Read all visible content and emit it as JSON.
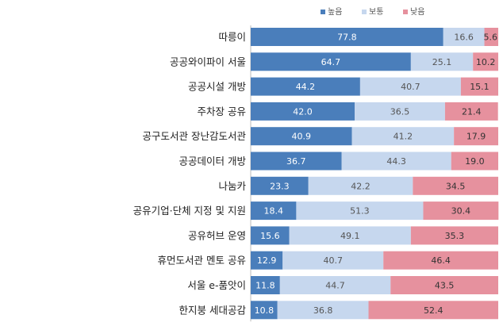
{
  "chart_data": {
    "type": "bar",
    "orientation": "horizontal",
    "stacked": "percent",
    "legend_position": "top-right",
    "xlim": [
      0,
      100
    ],
    "categories": [
      "따릉이",
      "공공와이파이 서울",
      "공공시설 개방",
      "주차장 공유",
      "공구도서관 장난감도서관",
      "공공데이터 개방",
      "나눔카",
      "공유기업·단체 지정 및 지원",
      "공유허브 운영",
      "휴먼도서관 멘토 공유",
      "서울 e-품앗이",
      "한지붕 세대공감"
    ],
    "series": [
      {
        "name": "높음",
        "color": "#4a7ebb",
        "label_color": "#ffffff",
        "values": [
          77.8,
          64.7,
          44.2,
          42.0,
          40.9,
          36.7,
          23.3,
          18.4,
          15.6,
          12.9,
          11.8,
          10.8
        ]
      },
      {
        "name": "보통",
        "color": "#c6d7ee",
        "label_color": "#555555",
        "values": [
          16.6,
          25.1,
          40.7,
          36.5,
          41.2,
          44.3,
          42.2,
          51.3,
          49.1,
          40.7,
          44.7,
          36.8
        ]
      },
      {
        "name": "낮음",
        "color": "#e6919e",
        "label_color": "#333333",
        "values": [
          5.6,
          10.2,
          15.1,
          21.4,
          17.9,
          19.0,
          34.5,
          30.4,
          35.3,
          46.4,
          43.5,
          52.4
        ]
      }
    ]
  }
}
